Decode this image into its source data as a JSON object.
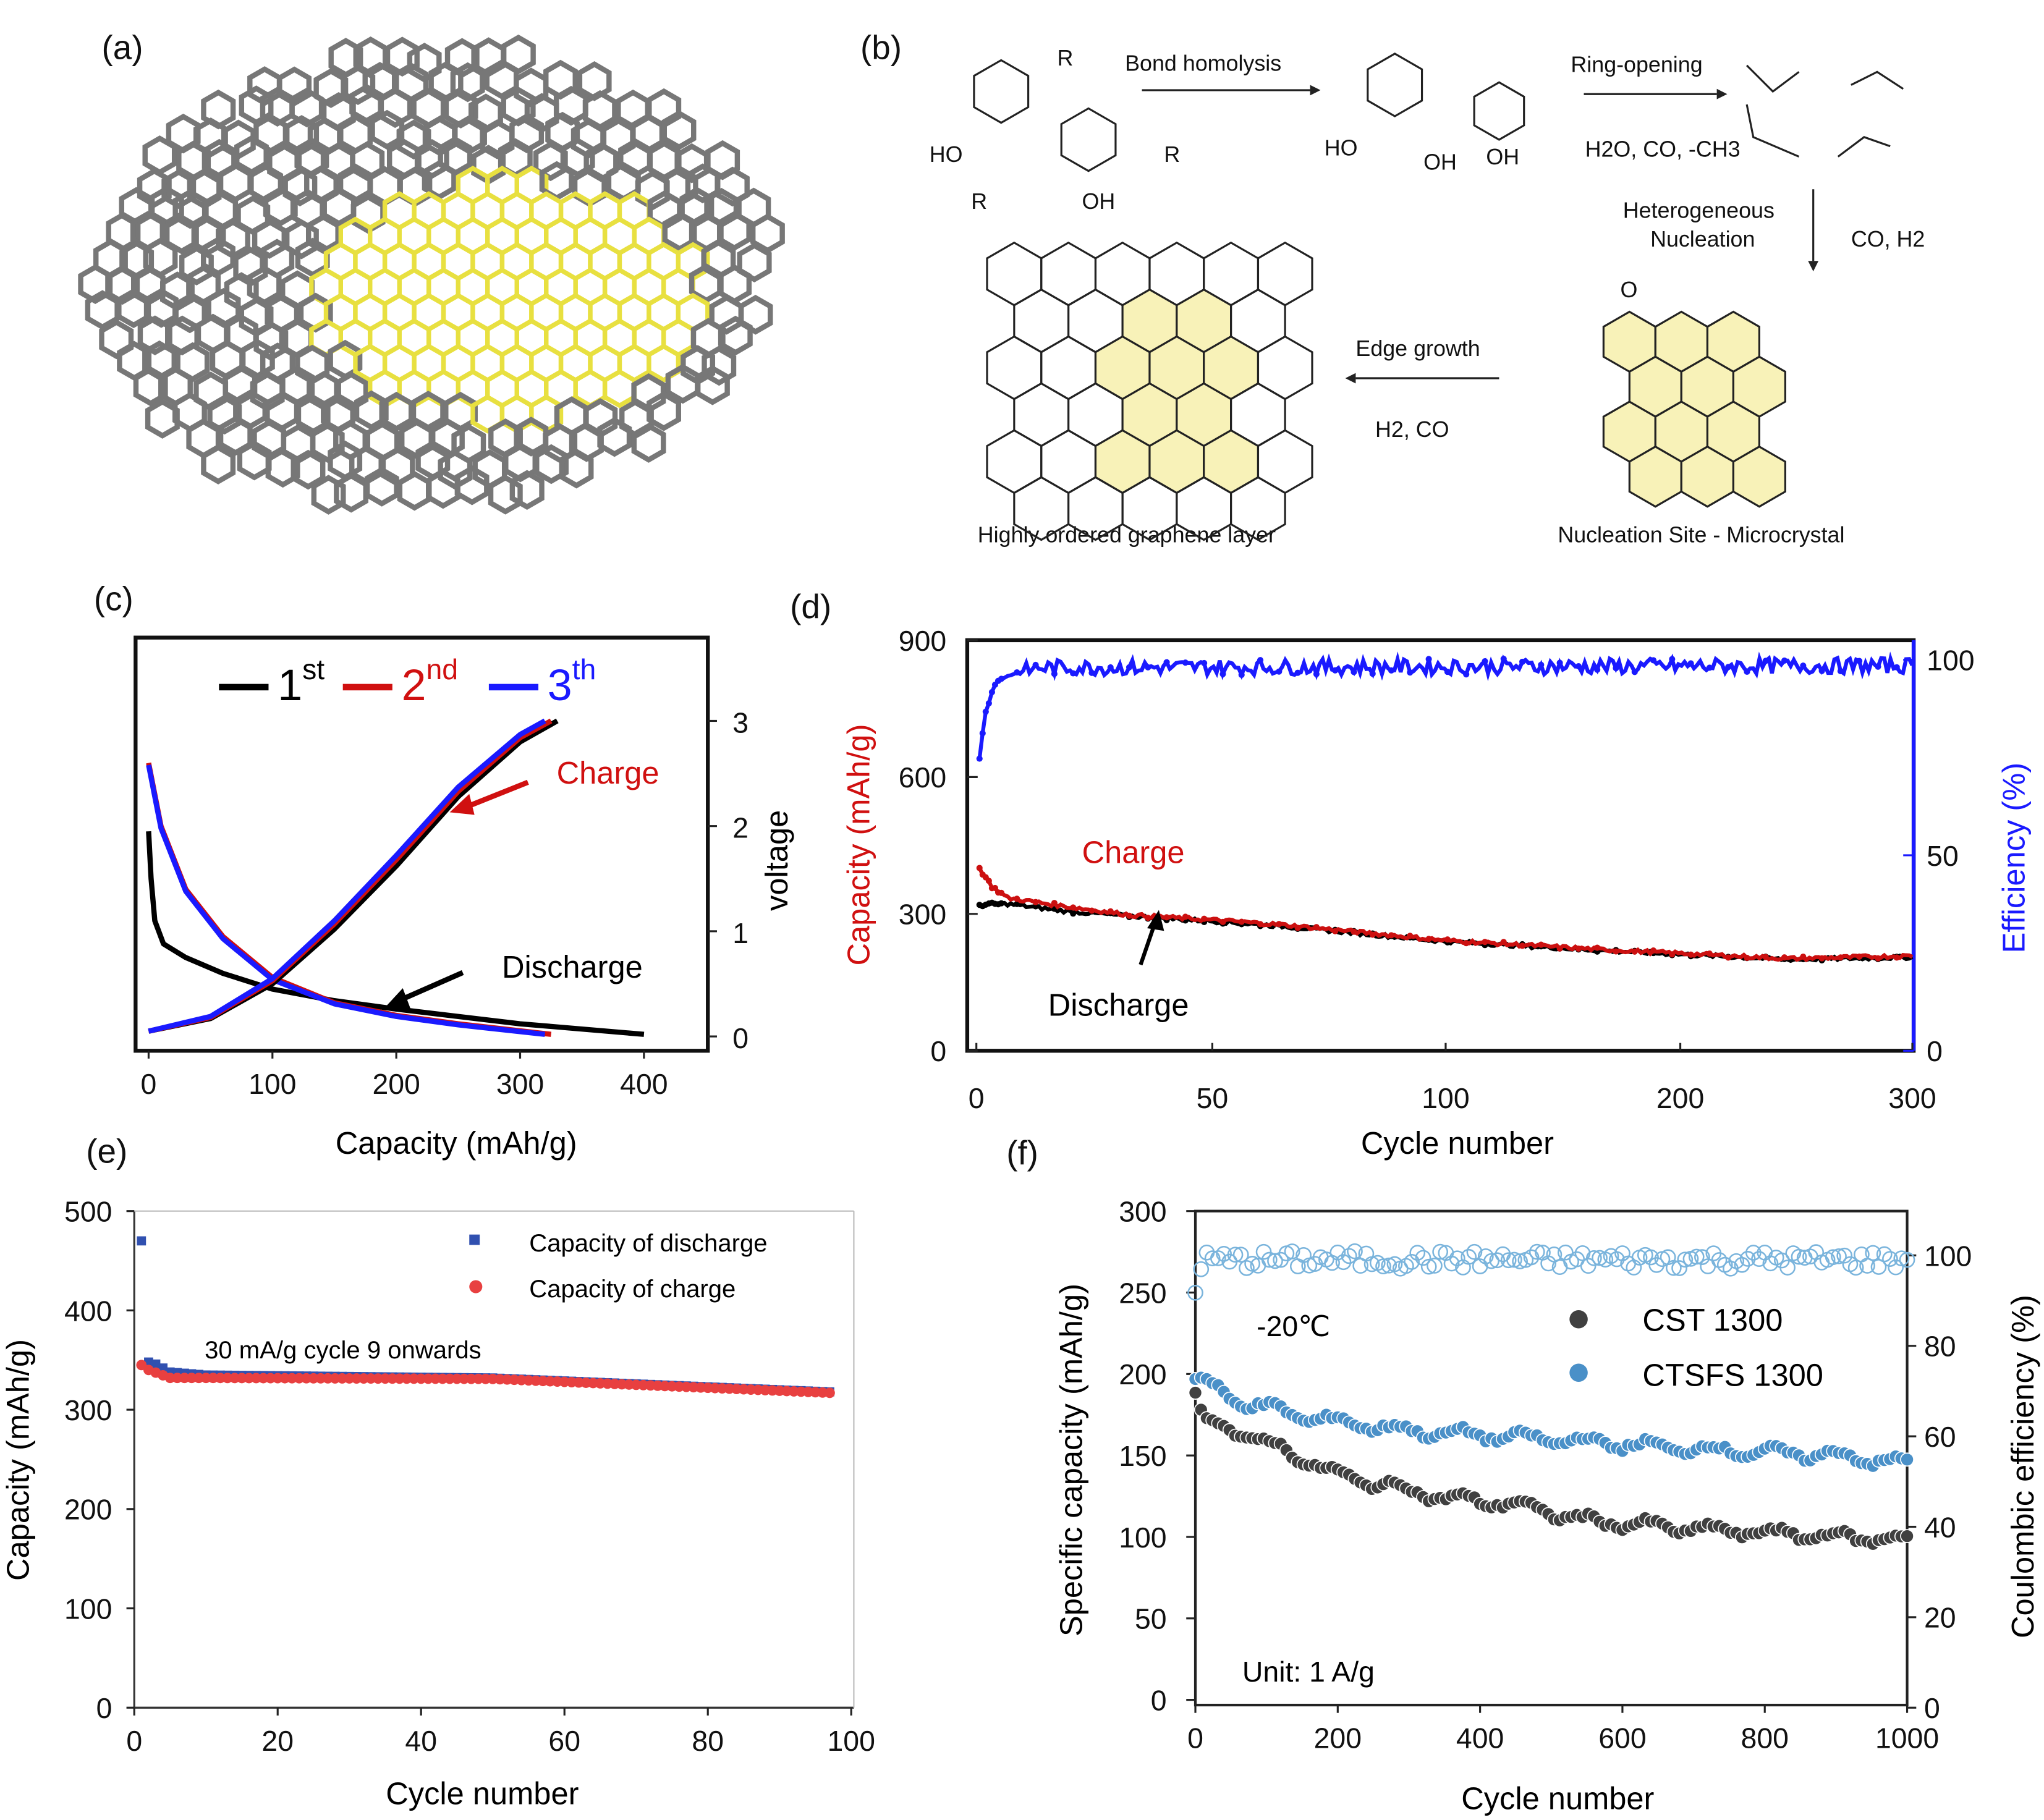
{
  "panel_labels": [
    "(a)",
    "(b)",
    "(c)",
    "(d)",
    "(e)",
    "(f)"
  ],
  "scheme": {
    "bond_homolysis": "Bond homolysis",
    "ring_opening": "Ring-opening",
    "ring_byproducts": "H2O, CO, -CH3",
    "nucleation_1": "Heterogeneous",
    "nucleation_2": "Nucleation",
    "nucleation_byproducts": "CO, H2",
    "edge_growth": "Edge growth",
    "edge_byproducts": "H2, CO",
    "graphene_caption": "Highly ordered graphene layer",
    "nucleation_caption": "Nucleation Site - Microcrystal",
    "atoms": {
      "ho": "HO",
      "oh": "OH",
      "r": "R",
      "o": "O"
    }
  },
  "chart_data": [
    {
      "type": "line",
      "id": "c",
      "xlabel": "Capacity (mAh/g)",
      "ylabel": "voltage",
      "xlim": [
        0,
        400
      ],
      "ylim": [
        0,
        3
      ],
      "xticks": [
        "0",
        "100",
        "200",
        "300",
        "400"
      ],
      "yticks": [
        "0",
        "1",
        "2",
        "3"
      ],
      "legend": [
        {
          "base": "1",
          "sup": "st",
          "color": "#000000"
        },
        {
          "base": "2",
          "sup": "nd",
          "color": "#d01010"
        },
        {
          "base": "3",
          "sup": "th",
          "color": "#1a1aff"
        }
      ],
      "annotations": {
        "charge": "Charge",
        "discharge": "Discharge"
      },
      "series": [
        {
          "name": "1st discharge",
          "color": "#000000",
          "points": [
            [
              0,
              1.95
            ],
            [
              2,
              1.5
            ],
            [
              5,
              1.1
            ],
            [
              12,
              0.88
            ],
            [
              30,
              0.75
            ],
            [
              60,
              0.6
            ],
            [
              100,
              0.45
            ],
            [
              150,
              0.34
            ],
            [
              200,
              0.26
            ],
            [
              300,
              0.12
            ],
            [
              400,
              0.02
            ]
          ]
        },
        {
          "name": "2nd discharge",
          "color": "#d01010",
          "points": [
            [
              0,
              2.6
            ],
            [
              10,
              2.0
            ],
            [
              30,
              1.4
            ],
            [
              60,
              0.95
            ],
            [
              100,
              0.56
            ],
            [
              150,
              0.32
            ],
            [
              200,
              0.2
            ],
            [
              250,
              0.12
            ],
            [
              325,
              0.02
            ]
          ]
        },
        {
          "name": "3rd discharge",
          "color": "#1a1aff",
          "points": [
            [
              0,
              2.58
            ],
            [
              10,
              1.98
            ],
            [
              30,
              1.38
            ],
            [
              60,
              0.93
            ],
            [
              100,
              0.54
            ],
            [
              150,
              0.31
            ],
            [
              200,
              0.19
            ],
            [
              250,
              0.11
            ],
            [
              320,
              0.02
            ]
          ]
        },
        {
          "name": "1st charge",
          "color": "#000000",
          "points": [
            [
              0,
              0.05
            ],
            [
              50,
              0.17
            ],
            [
              100,
              0.5
            ],
            [
              150,
              1.02
            ],
            [
              200,
              1.62
            ],
            [
              250,
              2.28
            ],
            [
              300,
              2.8
            ],
            [
              330,
              3.0
            ]
          ]
        },
        {
          "name": "2nd charge",
          "color": "#d01010",
          "points": [
            [
              0,
              0.05
            ],
            [
              50,
              0.18
            ],
            [
              100,
              0.53
            ],
            [
              150,
              1.07
            ],
            [
              200,
              1.68
            ],
            [
              250,
              2.33
            ],
            [
              300,
              2.84
            ],
            [
              325,
              3.0
            ]
          ]
        },
        {
          "name": "3rd charge",
          "color": "#1a1aff",
          "points": [
            [
              0,
              0.05
            ],
            [
              50,
              0.19
            ],
            [
              100,
              0.55
            ],
            [
              150,
              1.1
            ],
            [
              200,
              1.72
            ],
            [
              250,
              2.37
            ],
            [
              300,
              2.87
            ],
            [
              320,
              3.0
            ]
          ]
        }
      ]
    },
    {
      "type": "scatter",
      "id": "d",
      "xlabel": "Cycle number",
      "ylabel": "Capacity (mAh/g)",
      "y2label": "Efficiency (%)",
      "xlim": [
        0,
        300
      ],
      "ylim": [
        0,
        900
      ],
      "y2lim": [
        0,
        105
      ],
      "xticks": [
        "0",
        "50",
        "100",
        "200",
        "300"
      ],
      "yticks": [
        "0",
        "300",
        "600",
        "900"
      ],
      "y2ticks": [
        "0",
        "50",
        "100"
      ],
      "annotations": {
        "charge": "Charge",
        "discharge": "Discharge"
      },
      "series": [
        {
          "name": "Discharge",
          "color": "#000000",
          "axis": "left",
          "points": [
            [
              1,
              320
            ],
            [
              10,
              322
            ],
            [
              30,
              305
            ],
            [
              50,
              295
            ],
            [
              80,
              282
            ],
            [
              100,
              272
            ],
            [
              150,
              240
            ],
            [
              200,
              220
            ],
            [
              260,
              200
            ],
            [
              300,
              205
            ]
          ]
        },
        {
          "name": "Charge",
          "color": "#cc1010",
          "axis": "left",
          "points": [
            [
              1,
              400
            ],
            [
              5,
              360
            ],
            [
              10,
              335
            ],
            [
              30,
              315
            ],
            [
              50,
              297
            ],
            [
              80,
              285
            ],
            [
              100,
              275
            ],
            [
              150,
              242
            ],
            [
              200,
              222
            ],
            [
              260,
              202
            ],
            [
              300,
              208
            ]
          ]
        },
        {
          "name": "Efficiency",
          "color": "#1a1aff",
          "axis": "right",
          "points": [
            [
              1,
              75
            ],
            [
              3,
              87
            ],
            [
              6,
              94
            ],
            [
              10,
              96
            ],
            [
              20,
              98
            ],
            [
              300,
              98.5
            ]
          ]
        }
      ]
    },
    {
      "type": "scatter",
      "id": "e",
      "xlabel": "Cycle number",
      "ylabel": "Capacity (mAh/g)",
      "xlim": [
        0,
        100
      ],
      "ylim": [
        0,
        500
      ],
      "xticks": [
        "0",
        "20",
        "40",
        "60",
        "80",
        "100"
      ],
      "yticks": [
        "0",
        "100",
        "200",
        "300",
        "400",
        "500"
      ],
      "annotation": "30 mA/g cycle 9 onwards",
      "legend": [
        "Capacity of discharge",
        "Capacity of charge"
      ],
      "series": [
        {
          "name": "Capacity of discharge",
          "color": "#3050b0",
          "marker": "square",
          "points": [
            [
              1,
              470
            ],
            [
              2,
              348
            ],
            [
              3,
              346
            ],
            [
              5,
              338
            ],
            [
              10,
              335
            ],
            [
              50,
              332
            ],
            [
              97,
              318
            ]
          ]
        },
        {
          "name": "Capacity of charge",
          "color": "#e84040",
          "marker": "circle",
          "points": [
            [
              1,
              345
            ],
            [
              2,
              340
            ],
            [
              5,
              332
            ],
            [
              10,
              332
            ],
            [
              50,
              331
            ],
            [
              97,
              317
            ]
          ]
        }
      ]
    },
    {
      "type": "scatter",
      "id": "f",
      "xlabel": "Cycle number",
      "ylabel": "Specific capacity (mAh/g)",
      "y2label": "Coulombic efficiency (%)",
      "xlim": [
        0,
        1000
      ],
      "ylim": [
        0,
        300
      ],
      "y2lim": [
        0,
        110
      ],
      "xticks": [
        "0",
        "200",
        "400",
        "600",
        "800",
        "1000"
      ],
      "yticks": [
        "0",
        "50",
        "100",
        "150",
        "200",
        "250",
        "300"
      ],
      "y2ticks": [
        "0",
        "20",
        "40",
        "60",
        "80",
        "100"
      ],
      "annotations": {
        "temperature": "-20℃",
        "unit": "Unit: 1 A/g"
      },
      "legend": [
        "CST 1300",
        "CTSFS 1300"
      ],
      "series": [
        {
          "name": "CST 1300",
          "color": "#404040",
          "axis": "left",
          "points": [
            [
              0,
              190
            ],
            [
              10,
              172
            ],
            [
              100,
              158
            ],
            [
              200,
              138
            ],
            [
              350,
              124
            ],
            [
              450,
              120
            ],
            [
              550,
              110
            ],
            [
              700,
              105
            ],
            [
              1000,
              98
            ]
          ]
        },
        {
          "name": "CTSFS 1300",
          "color": "#4a90c8",
          "axis": "left",
          "points": [
            [
              0,
              198
            ],
            [
              50,
              185
            ],
            [
              150,
              174
            ],
            [
              300,
              165
            ],
            [
              500,
              160
            ],
            [
              700,
              154
            ],
            [
              900,
              150
            ],
            [
              1000,
              145
            ]
          ]
        },
        {
          "name": "CE CTSFS 1300",
          "color": "#7ab4dc",
          "axis": "right",
          "points": [
            [
              0,
              93
            ],
            [
              10,
              99
            ],
            [
              1000,
              99
            ]
          ]
        }
      ]
    }
  ]
}
